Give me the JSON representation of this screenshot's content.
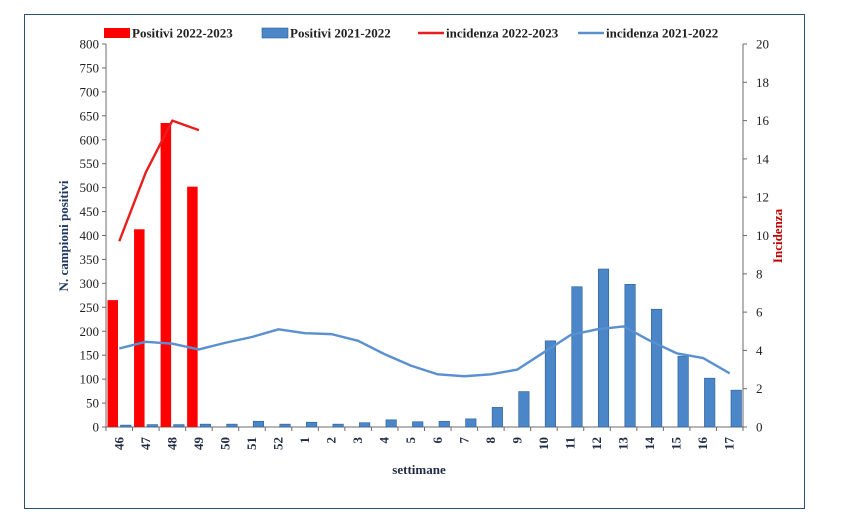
{
  "chart_data": {
    "type": "bar",
    "categories": [
      "46",
      "47",
      "48",
      "49",
      "50",
      "51",
      "52",
      "1",
      "2",
      "3",
      "4",
      "5",
      "6",
      "7",
      "8",
      "9",
      "10",
      "11",
      "12",
      "13",
      "14",
      "15",
      "16",
      "17"
    ],
    "series": [
      {
        "name": "Positivi 2022-2023",
        "kind": "bar",
        "axis": "left",
        "color": "#ff0000",
        "values": [
          265,
          413,
          635,
          502,
          null,
          null,
          null,
          null,
          null,
          null,
          null,
          null,
          null,
          null,
          null,
          null,
          null,
          null,
          null,
          null,
          null,
          null,
          null,
          null
        ]
      },
      {
        "name": "Positivi 2021-2022",
        "kind": "bar",
        "axis": "left",
        "color": "#4a86c8",
        "values": [
          4,
          5,
          5,
          6,
          6,
          12,
          6,
          10,
          6,
          9,
          15,
          11,
          12,
          17,
          41,
          74,
          180,
          293,
          330,
          298,
          246,
          148,
          102,
          77
        ]
      },
      {
        "name": "incidenza 2022-2023",
        "kind": "line",
        "axis": "right",
        "color": "#e81d1d",
        "values": [
          9.7,
          13.3,
          16.0,
          15.5,
          null,
          null,
          null,
          null,
          null,
          null,
          null,
          null,
          null,
          null,
          null,
          null,
          null,
          null,
          null,
          null,
          null,
          null,
          null,
          null
        ]
      },
      {
        "name": "incidenza 2021-2022",
        "kind": "line",
        "axis": "right",
        "color": "#5a8fd0",
        "values": [
          4.1,
          4.45,
          4.35,
          4.05,
          4.4,
          4.7,
          5.1,
          4.9,
          4.85,
          4.5,
          3.8,
          3.2,
          2.75,
          2.65,
          2.75,
          3.0,
          3.9,
          4.8,
          5.1,
          5.25,
          4.5,
          3.85,
          3.6,
          2.8
        ]
      }
    ],
    "xlabel": "settimane",
    "ylabel": "N. campioni positivi",
    "y2label": "Incidenza",
    "ylim": [
      0,
      800
    ],
    "y2lim": [
      0,
      20
    ],
    "yticks": [
      0,
      50,
      100,
      150,
      200,
      250,
      300,
      350,
      400,
      450,
      500,
      550,
      600,
      650,
      700,
      750,
      800
    ],
    "y2ticks": [
      0,
      2,
      4,
      6,
      8,
      10,
      12,
      14,
      16,
      18,
      20
    ],
    "legend_position": "top",
    "grid": false
  },
  "colors": {
    "left_axis_label": "#1f3864",
    "right_axis_label": "#c00000",
    "frame": "#2f4f6f"
  }
}
